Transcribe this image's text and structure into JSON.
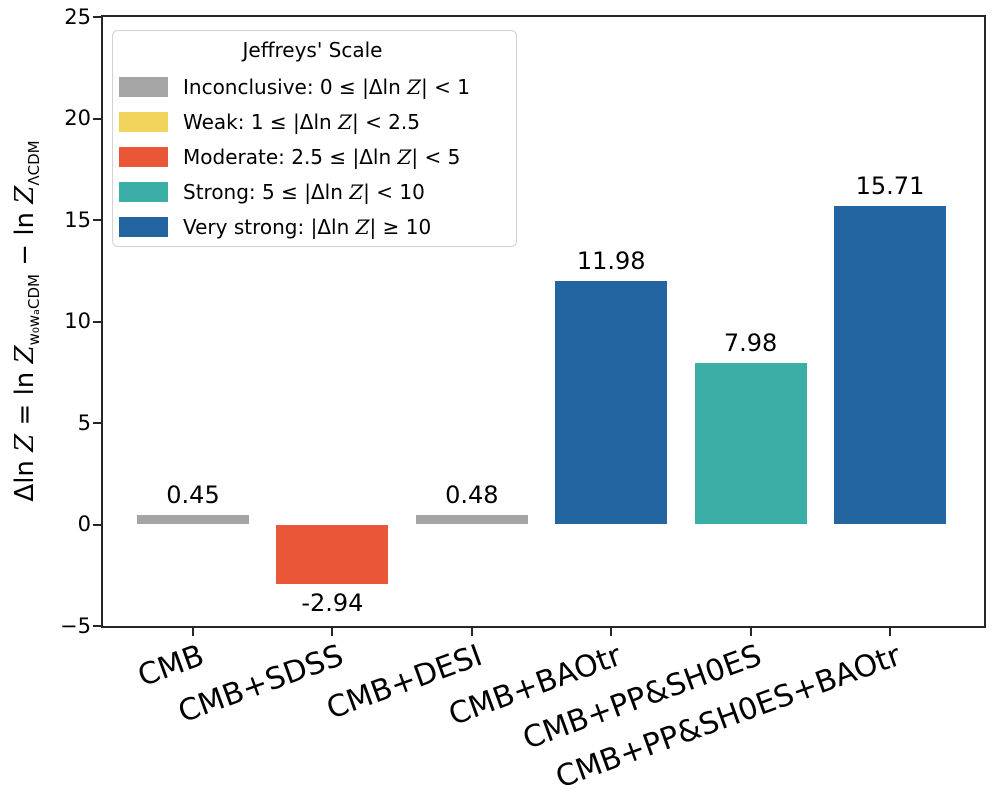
{
  "figure": {
    "background": "#ffffff",
    "spine_color": "#262626"
  },
  "axes": {
    "ylabel": {
      "p1": "Δln ",
      "z1": "Z",
      "p2": " = ln ",
      "z2": "Z",
      "sub1": "w₀wₐCDM",
      "p3": " − ln ",
      "z3": "Z",
      "sub2": "ΛCDM"
    },
    "yticks": [
      {
        "value": 25,
        "label": "25"
      },
      {
        "value": 20,
        "label": "20"
      },
      {
        "value": 15,
        "label": "15"
      },
      {
        "value": 10,
        "label": "10"
      },
      {
        "value": 5,
        "label": "5"
      },
      {
        "value": 0,
        "label": "0"
      },
      {
        "value": -5,
        "label": "−5"
      }
    ]
  },
  "chart_data": {
    "type": "bar",
    "title": "",
    "xlabel": "",
    "ylabel": "Δln Z = ln Z_{w0waCDM} − ln Z_{ΛCDM}",
    "grid": false,
    "ylim": [
      -5,
      25
    ],
    "categories": [
      "CMB",
      "CMB+SDSS",
      "CMB+DESI",
      "CMB+BAOtr",
      "CMB+PP&SH0ES",
      "CMB+PP&SH0ES+BAOtr"
    ],
    "values": [
      0.45,
      -2.94,
      0.48,
      11.98,
      7.98,
      15.71
    ],
    "value_labels": [
      "0.45",
      "-2.94",
      "0.48",
      "11.98",
      "7.98",
      "15.71"
    ],
    "bar_colors": [
      "#a5a5a5",
      "#ea5638",
      "#a5a5a5",
      "#2365a0",
      "#3bafa5",
      "#2365a0"
    ],
    "legend": {
      "title": "Jeffreys' Scale",
      "position": "upper left",
      "z_char": "Z",
      "items": [
        {
          "name": "inconclusive",
          "color": "#a5a5a5",
          "pre": "Inconclusive: 0 ≤ |Δln ",
          "post": "| < 1",
          "label": "Inconclusive: 0 ≤ |Δln Z| < 1"
        },
        {
          "name": "weak",
          "color": "#f2d45c",
          "pre": "Weak: 1 ≤ |Δln ",
          "post": "| < 2.5",
          "label": "Weak: 1 ≤ |Δln Z| < 2.5"
        },
        {
          "name": "moderate",
          "color": "#ea5638",
          "pre": "Moderate: 2.5 ≤ |Δln ",
          "post": "| < 5",
          "label": "Moderate: 2.5 ≤ |Δln Z| < 5"
        },
        {
          "name": "strong",
          "color": "#3bafa5",
          "pre": "Strong: 5 ≤ |Δln ",
          "post": "| < 10",
          "label": "Strong: 5 ≤ |Δln Z| < 10"
        },
        {
          "name": "very-strong",
          "color": "#2365a0",
          "pre": "Very strong: |Δln ",
          "post": "| ≥ 10",
          "label": "Very strong: |Δln Z| ≥ 10"
        }
      ]
    }
  }
}
